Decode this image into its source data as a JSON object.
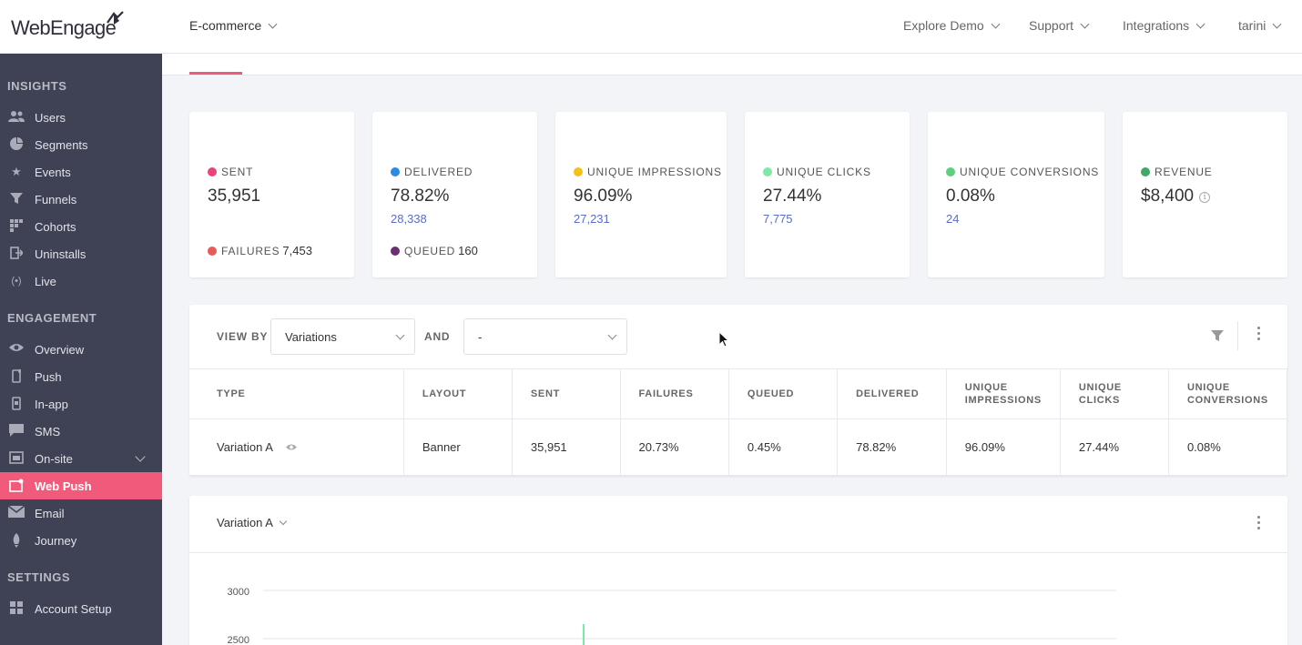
{
  "header": {
    "logo": "WebEngage",
    "project": "E-commerce",
    "nav": [
      {
        "label": "Explore Demo"
      },
      {
        "label": "Support"
      },
      {
        "label": "Integrations"
      },
      {
        "label": "tarini"
      }
    ]
  },
  "sidebar": {
    "insights_title": "INSIGHTS",
    "insights": [
      {
        "label": "Users",
        "icon": "users-icon"
      },
      {
        "label": "Segments",
        "icon": "pie-icon"
      },
      {
        "label": "Events",
        "icon": "star-icon"
      },
      {
        "label": "Funnels",
        "icon": "funnel-icon"
      },
      {
        "label": "Cohorts",
        "icon": "grid-icon"
      },
      {
        "label": "Uninstalls",
        "icon": "exit-icon"
      },
      {
        "label": "Live",
        "icon": "live-icon"
      }
    ],
    "engagement_title": "ENGAGEMENT",
    "engagement": [
      {
        "label": "Overview",
        "icon": "eye-icon"
      },
      {
        "label": "Push",
        "icon": "mobile-icon"
      },
      {
        "label": "In-app",
        "icon": "inapp-icon"
      },
      {
        "label": "SMS",
        "icon": "sms-icon"
      },
      {
        "label": "On-site",
        "icon": "onsite-icon"
      },
      {
        "label": "Web Push",
        "icon": "webpush-icon",
        "active": true
      },
      {
        "label": "Email",
        "icon": "email-icon"
      },
      {
        "label": "Journey",
        "icon": "journey-icon"
      }
    ],
    "settings_title": "SETTINGS",
    "settings": [
      {
        "label": "Account Setup",
        "icon": "account-icon"
      }
    ]
  },
  "metrics": {
    "sent": {
      "label": "SENT",
      "value": "35,951",
      "color": "#e8457e",
      "foot_label": "FAILURES",
      "foot_value": "7,453",
      "foot_color": "#e85a5a"
    },
    "delivered": {
      "label": "DELIVERED",
      "value": "78.82%",
      "sub": "28,338",
      "color": "#2a8be6",
      "foot_label": "QUEUED",
      "foot_value": "160",
      "foot_color": "#6b2f72"
    },
    "impressions": {
      "label": "UNIQUE IMPRESSIONS",
      "value": "96.09%",
      "sub": "27,231",
      "color": "#f5c018"
    },
    "clicks": {
      "label": "UNIQUE CLICKS",
      "value": "27.44%",
      "sub": "7,775",
      "color": "#7fe8a6"
    },
    "conversions": {
      "label": "UNIQUE CONVERSIONS",
      "value": "0.08%",
      "sub": "24",
      "color": "#5ecf7e"
    },
    "revenue": {
      "label": "REVENUE",
      "value": "$8,400",
      "color": "#3fa86a",
      "info": "i"
    }
  },
  "view_by": {
    "label": "VIEW BY",
    "select1": "Variations",
    "and_label": "AND",
    "select2": "-"
  },
  "table": {
    "headers": [
      "TYPE",
      "LAYOUT",
      "SENT",
      "FAILURES",
      "QUEUED",
      "DELIVERED",
      "UNIQUE\nIMPRESSIONS",
      "UNIQUE\nCLICKS",
      "UNIQUE\nCONVERSIONS"
    ],
    "row": [
      "Variation A",
      "Banner",
      "35,951",
      "20.73%",
      "0.45%",
      "78.82%",
      "96.09%",
      "27.44%",
      "0.08%"
    ]
  },
  "variation_panel": {
    "select": "Variation A"
  },
  "chart_data": {
    "type": "line",
    "yticks": [
      "3000",
      "2500"
    ],
    "series_color": "#7fe8a6"
  }
}
